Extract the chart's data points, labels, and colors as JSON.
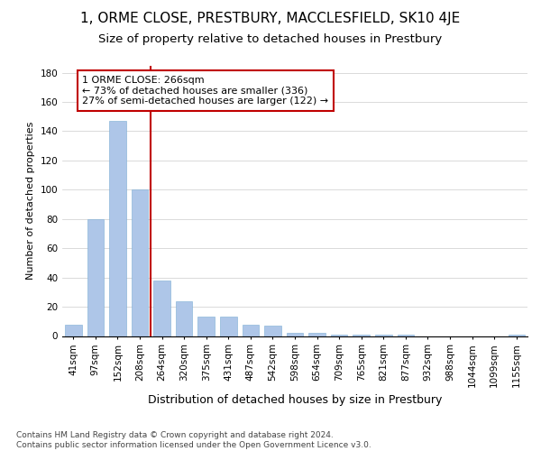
{
  "title": "1, ORME CLOSE, PRESTBURY, MACCLESFIELD, SK10 4JE",
  "subtitle": "Size of property relative to detached houses in Prestbury",
  "xlabel": "Distribution of detached houses by size in Prestbury",
  "ylabel": "Number of detached properties",
  "categories": [
    "41sqm",
    "97sqm",
    "152sqm",
    "208sqm",
    "264sqm",
    "320sqm",
    "375sqm",
    "431sqm",
    "487sqm",
    "542sqm",
    "598sqm",
    "654sqm",
    "709sqm",
    "765sqm",
    "821sqm",
    "877sqm",
    "932sqm",
    "988sqm",
    "1044sqm",
    "1099sqm",
    "1155sqm"
  ],
  "values": [
    8,
    80,
    147,
    100,
    38,
    24,
    13,
    13,
    8,
    7,
    2,
    2,
    1,
    1,
    1,
    1,
    0,
    0,
    0,
    0,
    1
  ],
  "bar_color_normal": "#aec6e8",
  "bar_color_edge": "#7badd4",
  "annotation_text": "1 ORME CLOSE: 266sqm\n← 73% of detached houses are smaller (336)\n27% of semi-detached houses are larger (122) →",
  "annotation_box_color": "#ffffff",
  "annotation_box_edge": "#c00000",
  "vline_color": "#c00000",
  "vline_x": 3.5,
  "ylim": [
    0,
    185
  ],
  "yticks": [
    0,
    20,
    40,
    60,
    80,
    100,
    120,
    140,
    160,
    180
  ],
  "footer_text": "Contains HM Land Registry data © Crown copyright and database right 2024.\nContains public sector information licensed under the Open Government Licence v3.0.",
  "title_fontsize": 11,
  "subtitle_fontsize": 9.5,
  "xlabel_fontsize": 9,
  "ylabel_fontsize": 8,
  "tick_fontsize": 7.5,
  "annotation_fontsize": 8,
  "footer_fontsize": 6.5
}
